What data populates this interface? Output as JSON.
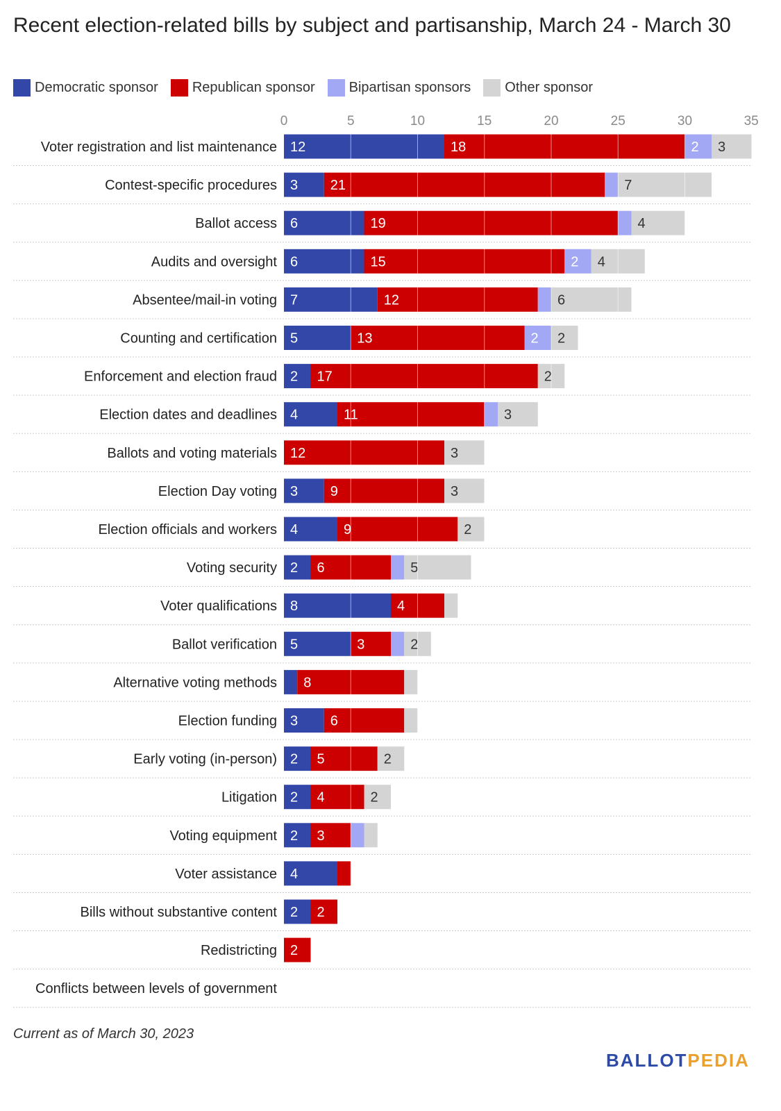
{
  "chart_data": {
    "type": "bar",
    "orientation": "horizontal",
    "stacked": true,
    "title": "Recent election-related bills by subject and partisanship, March 24 - March 30",
    "xlim": [
      0,
      35
    ],
    "ticks": [
      0,
      5,
      10,
      15,
      20,
      25,
      30,
      35
    ],
    "grid": true,
    "legend_placement": "top-left",
    "categories": [
      "Voter registration and list maintenance",
      "Contest-specific procedures",
      "Ballot access",
      "Audits and oversight",
      "Absentee/mail-in voting",
      "Counting and certification",
      "Enforcement and election fraud",
      "Election dates and deadlines",
      "Ballots and voting materials",
      "Election Day voting",
      "Election officials and workers",
      "Voting security",
      "Voter qualifications",
      "Ballot verification",
      "Alternative voting methods",
      "Election funding",
      "Early voting (in-person)",
      "Litigation",
      "Voting equipment",
      "Voter assistance",
      "Bills without substantive content",
      "Redistricting",
      "Conflicts between levels of government"
    ],
    "series": [
      {
        "name": "Democratic sponsor",
        "color": "#3347a8",
        "values": [
          12,
          3,
          6,
          6,
          7,
          5,
          2,
          4,
          0,
          3,
          4,
          2,
          8,
          5,
          1,
          3,
          2,
          2,
          2,
          4,
          2,
          0,
          0
        ],
        "labels": [
          "12",
          "3",
          "6",
          "6",
          "7",
          "5",
          "2",
          "4",
          "",
          "3",
          "4",
          "2",
          "8",
          "5",
          "",
          "3",
          "2",
          "2",
          "2",
          "4",
          "2",
          "",
          ""
        ]
      },
      {
        "name": "Republican sponsor",
        "color": "#cc0000",
        "values": [
          18,
          21,
          19,
          15,
          12,
          13,
          17,
          11,
          12,
          9,
          9,
          6,
          4,
          3,
          8,
          6,
          5,
          4,
          3,
          1,
          2,
          2,
          0
        ],
        "labels": [
          "18",
          "21",
          "19",
          "15",
          "12",
          "13",
          "17",
          "11",
          "12",
          "9",
          "9",
          "6",
          "4",
          "3",
          "8",
          "6",
          "5",
          "4",
          "3",
          "",
          "2",
          "2",
          ""
        ]
      },
      {
        "name": "Bipartisan sponsors",
        "color": "#a3a8f5",
        "values": [
          2,
          1,
          1,
          2,
          1,
          2,
          0,
          1,
          0,
          0,
          0,
          1,
          0,
          1,
          0,
          0,
          0,
          0,
          1,
          0,
          0,
          0,
          0
        ],
        "labels": [
          "2",
          "",
          "",
          "2",
          "",
          "2",
          "",
          "",
          "",
          "",
          "",
          "",
          "",
          "",
          "",
          "",
          "",
          "",
          "",
          "",
          "",
          "",
          ""
        ]
      },
      {
        "name": "Other sponsor",
        "color": "#d4d4d4",
        "values": [
          3,
          7,
          4,
          4,
          6,
          2,
          2,
          3,
          3,
          3,
          2,
          5,
          1,
          2,
          1,
          1,
          2,
          2,
          1,
          0,
          0,
          0,
          0
        ],
        "labels": [
          "3",
          "7",
          "4",
          "4",
          "6",
          "2",
          "2",
          "3",
          "3",
          "3",
          "2",
          "5",
          "",
          "2",
          "",
          "",
          "2",
          "2",
          "",
          "",
          "",
          "",
          ""
        ]
      }
    ]
  },
  "footnote": "Current as of March 30, 2023",
  "logo": {
    "part1": "BALLOT",
    "part2": "PEDIA"
  }
}
